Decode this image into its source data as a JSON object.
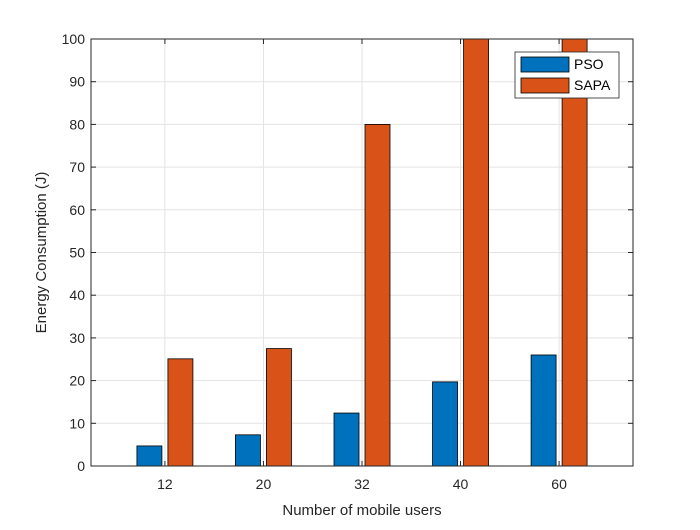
{
  "chart_data": {
    "type": "bar",
    "title": "",
    "xlabel": "Number of mobile users",
    "ylabel": "Energy Consumption (J)",
    "categories": [
      "12",
      "20",
      "32",
      "40",
      "60"
    ],
    "series": [
      {
        "name": "PSO",
        "color": "#0072BD",
        "values": [
          4.7,
          7.3,
          12.4,
          19.7,
          26.0
        ]
      },
      {
        "name": "SAPA",
        "color": "#D95319",
        "values": [
          25.1,
          27.5,
          80.0,
          100.0,
          100.0
        ]
      }
    ],
    "ylim": [
      0,
      100
    ],
    "yticks": [
      0,
      10,
      20,
      30,
      40,
      50,
      60,
      70,
      80,
      90,
      100
    ],
    "grid": true,
    "legend_position": "top-right"
  }
}
